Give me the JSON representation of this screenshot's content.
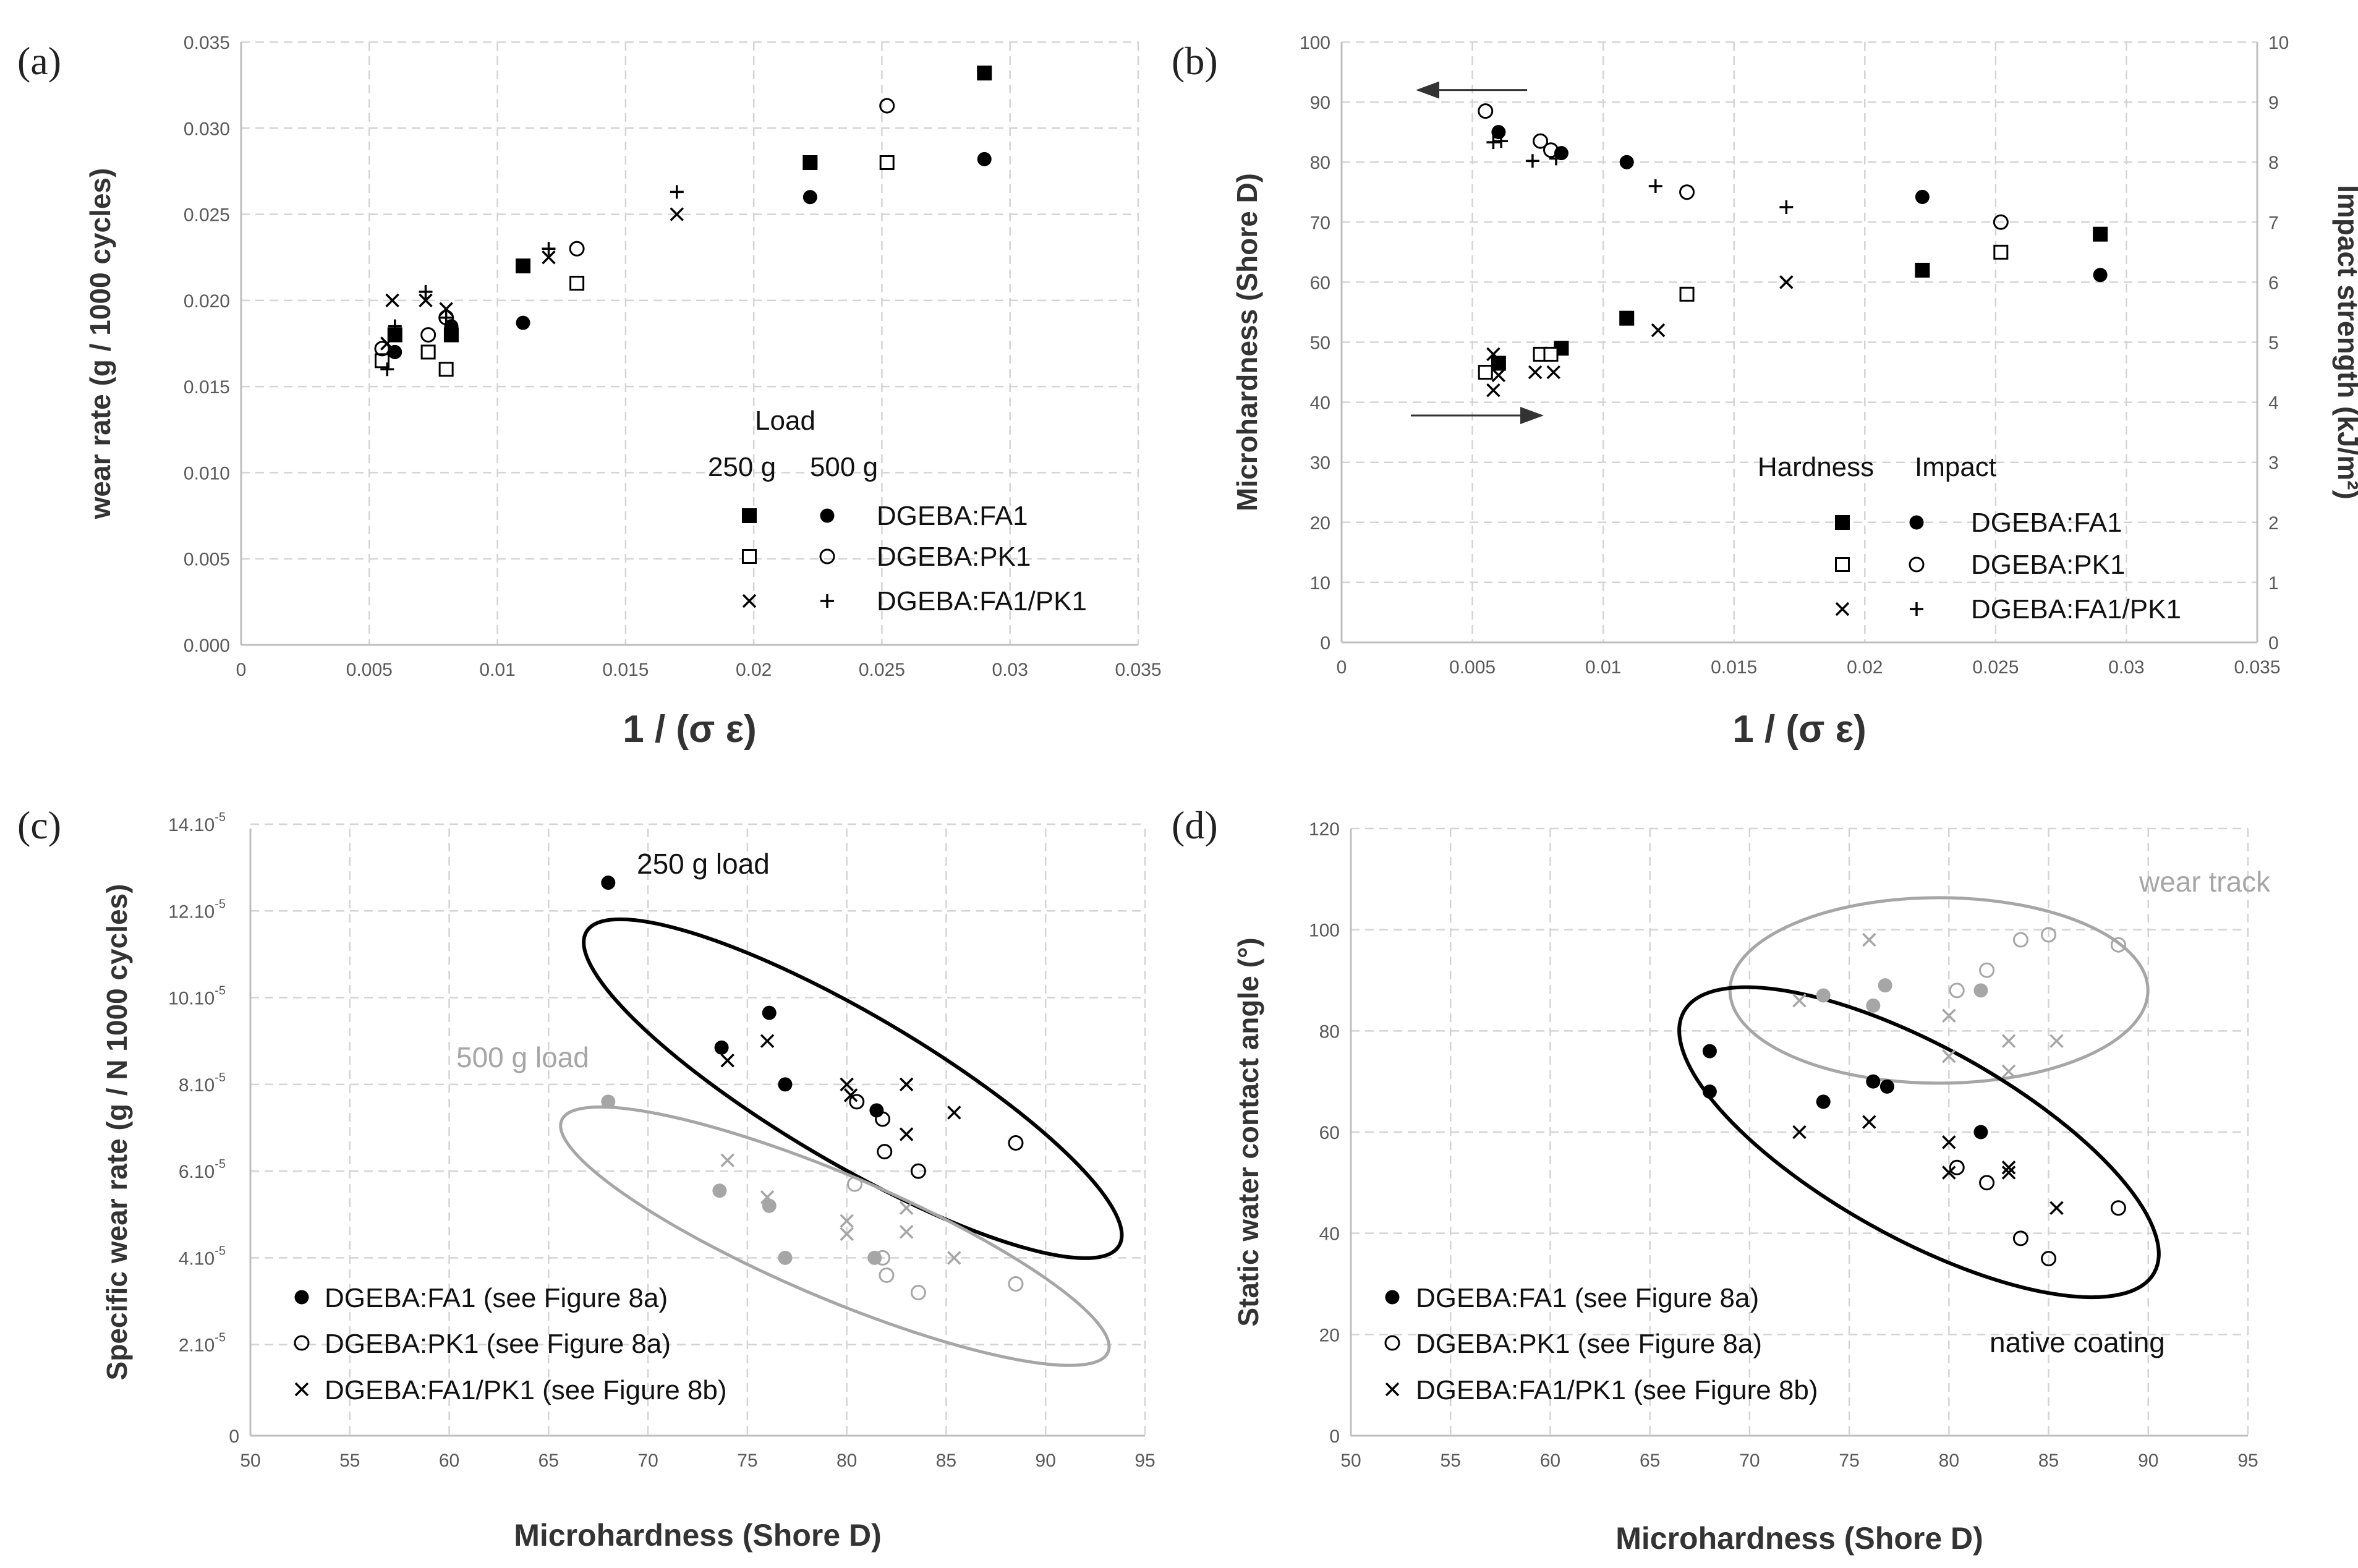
{
  "chart_data": [
    {
      "panel": "(a)",
      "type": "scatter",
      "title": "",
      "xlabel": "1 / (σ ε)",
      "ylabel": "wear rate (g / 1000 cycles)",
      "xlim": [
        0,
        0.035
      ],
      "ylim": [
        0,
        0.035
      ],
      "xticks": [
        0,
        0.005,
        0.01,
        0.015,
        0.02,
        0.025,
        0.03,
        0.035
      ],
      "xtick_labels": [
        "0",
        "0.005",
        "0.01",
        "0.015",
        "0.02",
        "0.025",
        "0.03",
        "0.035"
      ],
      "yticks": [
        0,
        0.005,
        0.01,
        0.015,
        0.02,
        0.025,
        0.03,
        0.035
      ],
      "ytick_labels": [
        "0.000",
        "0.005",
        "0.010",
        "0.015",
        "0.020",
        "0.025",
        "0.030",
        "0.035"
      ],
      "grid": true,
      "legend": {
        "title": "Load",
        "column_headers": [
          "250 g",
          "500 g"
        ],
        "entries": [
          "DGEBA:FA1",
          "DGEBA:PK1",
          "DGEBA:FA1/PK1"
        ],
        "placement": "lower-right"
      },
      "series": [
        {
          "name": "DGEBA:FA1 250 g",
          "marker": "square-filled",
          "points": [
            [
              0.006,
              0.018
            ],
            [
              0.0082,
              0.018
            ],
            [
              0.011,
              0.022
            ],
            [
              0.0222,
              0.028
            ],
            [
              0.029,
              0.0332
            ]
          ]
        },
        {
          "name": "DGEBA:FA1 500 g",
          "marker": "circle-filled",
          "points": [
            [
              0.006,
              0.017
            ],
            [
              0.0082,
              0.0185
            ],
            [
              0.011,
              0.0187
            ],
            [
              0.0222,
              0.026
            ],
            [
              0.029,
              0.0282
            ]
          ]
        },
        {
          "name": "DGEBA:PK1 250 g",
          "marker": "square-open",
          "points": [
            [
              0.0055,
              0.0165
            ],
            [
              0.0073,
              0.017
            ],
            [
              0.008,
              0.016
            ],
            [
              0.0131,
              0.021
            ],
            [
              0.0252,
              0.028
            ]
          ]
        },
        {
          "name": "DGEBA:PK1 500 g",
          "marker": "circle-open",
          "points": [
            [
              0.0055,
              0.0172
            ],
            [
              0.0073,
              0.018
            ],
            [
              0.008,
              0.019
            ],
            [
              0.0131,
              0.023
            ],
            [
              0.0252,
              0.0313
            ]
          ]
        },
        {
          "name": "DGEBA:FA1/PK1 250 g",
          "marker": "x",
          "points": [
            [
              0.0057,
              0.0175
            ],
            [
              0.0059,
              0.02
            ],
            [
              0.0072,
              0.02
            ],
            [
              0.008,
              0.0195
            ],
            [
              0.012,
              0.0225
            ],
            [
              0.017,
              0.025
            ]
          ]
        },
        {
          "name": "DGEBA:FA1/PK1 500 g",
          "marker": "plus",
          "points": [
            [
              0.0057,
              0.016
            ],
            [
              0.006,
              0.0185
            ],
            [
              0.0072,
              0.0205
            ],
            [
              0.008,
              0.019
            ],
            [
              0.012,
              0.023
            ],
            [
              0.017,
              0.0263
            ]
          ]
        }
      ]
    },
    {
      "panel": "(b)",
      "type": "scatter",
      "title": "",
      "xlabel": "1 / (σ ε)",
      "ylabel": "Microhardness (Shore D)",
      "y2label": "Impact strength (kJ/m²)",
      "xlim": [
        0,
        0.035
      ],
      "ylim": [
        0,
        100
      ],
      "y2lim": [
        0,
        10
      ],
      "xticks": [
        0,
        0.005,
        0.01,
        0.015,
        0.02,
        0.025,
        0.03,
        0.035
      ],
      "xtick_labels": [
        "0",
        "0.005",
        "0.01",
        "0.015",
        "0.02",
        "0.025",
        "0.03",
        "0.035"
      ],
      "yticks": [
        0,
        10,
        20,
        30,
        40,
        50,
        60,
        70,
        80,
        90,
        100
      ],
      "ytick_labels": [
        "0",
        "10",
        "20",
        "30",
        "40",
        "50",
        "60",
        "70",
        "80",
        "90",
        "100"
      ],
      "y2ticks": [
        0,
        1,
        2,
        3,
        4,
        5,
        6,
        7,
        8,
        9,
        10
      ],
      "y2tick_labels": [
        "0",
        "1",
        "2",
        "3",
        "4",
        "5",
        "6",
        "7",
        "8",
        "9",
        "10"
      ],
      "grid": true,
      "annotations": [
        "arrow pointing left at hardness points (≈ y 92)",
        "arrow pointing right at impact points (≈ y 38)"
      ],
      "legend": {
        "column_headers": [
          "Hardness",
          "Impact"
        ],
        "entries": [
          "DGEBA:FA1",
          "DGEBA:PK1",
          "DGEBA:FA1/PK1"
        ],
        "placement": "lower-right"
      },
      "series": [
        {
          "name": "DGEBA:FA1 hardness",
          "axis": "left",
          "marker": "circle-filled",
          "points": [
            [
              0.006,
              85.0
            ],
            [
              0.0084,
              81.5
            ],
            [
              0.0109,
              80.0
            ],
            [
              0.0222,
              74.2
            ],
            [
              0.029,
              61.2
            ]
          ]
        },
        {
          "name": "DGEBA:FA1 impact",
          "axis": "right",
          "marker": "square-filled",
          "points": [
            [
              0.006,
              4.65
            ],
            [
              0.0084,
              4.9
            ],
            [
              0.0109,
              5.4
            ],
            [
              0.0222,
              6.2
            ],
            [
              0.029,
              6.8
            ]
          ]
        },
        {
          "name": "DGEBA:PK1 hardness",
          "axis": "left",
          "marker": "circle-open",
          "points": [
            [
              0.0055,
              88.5
            ],
            [
              0.0076,
              83.5
            ],
            [
              0.008,
              82.0
            ],
            [
              0.0132,
              75.0
            ],
            [
              0.0252,
              70.0
            ]
          ]
        },
        {
          "name": "DGEBA:PK1 impact",
          "axis": "right",
          "marker": "square-open",
          "points": [
            [
              0.0055,
              4.5
            ],
            [
              0.0076,
              4.8
            ],
            [
              0.008,
              4.8
            ],
            [
              0.0132,
              5.8
            ],
            [
              0.0252,
              6.5
            ]
          ]
        },
        {
          "name": "DGEBA:FA1/PK1 hardness",
          "axis": "left",
          "marker": "plus",
          "points": [
            [
              0.0058,
              83.3
            ],
            [
              0.0061,
              83.5
            ],
            [
              0.0073,
              80.2
            ],
            [
              0.0082,
              80.6
            ],
            [
              0.012,
              76.0
            ],
            [
              0.017,
              72.5
            ]
          ]
        },
        {
          "name": "DGEBA:FA1/PK1 impact",
          "axis": "right",
          "marker": "x",
          "points": [
            [
              0.0058,
              4.2
            ],
            [
              0.006,
              4.45
            ],
            [
              0.0058,
              4.8
            ],
            [
              0.0074,
              4.5
            ],
            [
              0.0081,
              4.5
            ],
            [
              0.0121,
              5.2
            ],
            [
              0.017,
              6.0
            ]
          ]
        }
      ]
    },
    {
      "panel": "(c)",
      "type": "scatter",
      "title": "",
      "xlabel": "Microhardness (Shore D)",
      "ylabel": "Specific wear rate (g / N 1000 cycles)",
      "xlim": [
        50,
        95
      ],
      "ylim": [
        0,
        14
      ],
      "xticks": [
        50,
        55,
        60,
        65,
        70,
        75,
        80,
        85,
        90,
        95
      ],
      "xtick_labels": [
        "50",
        "55",
        "60",
        "65",
        "70",
        "75",
        "80",
        "85",
        "90",
        "95"
      ],
      "yticks": [
        0,
        2.1,
        4.1,
        6.1,
        8.1,
        10.1,
        12.1,
        14.1
      ],
      "ytick_labels": [
        "0",
        "2.10",
        "4.10",
        "6.10",
        "8.10",
        "10.10",
        "12.10",
        "14.10"
      ],
      "ytick_exponent": "-5",
      "grid": true,
      "annotations": [
        "250 g load",
        "500 g load"
      ],
      "legend": {
        "entries": [
          "DGEBA:FA1 (see Figure 8a)",
          "DGEBA:PK1 (see Figure 8a)",
          "DGEBA:FA1/PK1 (see Figure 8b)"
        ],
        "placement": "lower-left"
      },
      "series": [
        {
          "name": "DGEBA:FA1 250 g",
          "marker": "circle-filled",
          "color": "#000000",
          "points": [
            [
              68.0,
              12.75
            ],
            [
              73.7,
              8.95
            ],
            [
              76.1,
              9.75
            ],
            [
              76.9,
              8.1
            ],
            [
              81.5,
              7.5
            ]
          ]
        },
        {
          "name": "DGEBA:PK1 250 g",
          "marker": "circle-open",
          "color": "#000000",
          "points": [
            [
              80.5,
              7.7
            ],
            [
              81.8,
              7.3
            ],
            [
              81.9,
              6.55
            ],
            [
              83.6,
              6.1
            ],
            [
              88.5,
              6.75
            ]
          ]
        },
        {
          "name": "DGEBA:FA1/PK1 250 g",
          "marker": "x",
          "color": "#000000",
          "points": [
            [
              74.0,
              8.65
            ],
            [
              76.0,
              9.1
            ],
            [
              80.0,
              8.1
            ],
            [
              80.2,
              7.85
            ],
            [
              83.0,
              8.1
            ],
            [
              83.0,
              6.95
            ],
            [
              85.4,
              7.45
            ]
          ]
        },
        {
          "name": "DGEBA:FA1 500 g",
          "marker": "circle-filled",
          "color": "#a6a6a6",
          "points": [
            [
              68.0,
              7.7
            ],
            [
              73.6,
              5.65
            ],
            [
              76.1,
              5.3
            ],
            [
              76.9,
              4.1
            ],
            [
              81.4,
              4.1
            ]
          ]
        },
        {
          "name": "DGEBA:PK1 500 g",
          "marker": "circle-open",
          "color": "#a6a6a6",
          "points": [
            [
              80.4,
              5.8
            ],
            [
              81.8,
              4.1
            ],
            [
              82.0,
              3.7
            ],
            [
              83.6,
              3.3
            ],
            [
              88.5,
              3.5
            ]
          ]
        },
        {
          "name": "DGEBA:FA1/PK1 500 g",
          "marker": "x",
          "color": "#a6a6a6",
          "points": [
            [
              74.0,
              6.35
            ],
            [
              76.0,
              5.5
            ],
            [
              80.0,
              4.95
            ],
            [
              80.0,
              4.65
            ],
            [
              83.0,
              5.25
            ],
            [
              83.0,
              4.7
            ],
            [
              85.4,
              4.1
            ]
          ]
        }
      ]
    },
    {
      "panel": "(d)",
      "type": "scatter",
      "title": "",
      "xlabel": "Microhardness (Shore D)",
      "ylabel": "Static water contact angle (°)",
      "xlim": [
        50,
        95
      ],
      "ylim": [
        0,
        120
      ],
      "xticks": [
        50,
        55,
        60,
        65,
        70,
        75,
        80,
        85,
        90,
        95
      ],
      "xtick_labels": [
        "50",
        "55",
        "60",
        "65",
        "70",
        "75",
        "80",
        "85",
        "90",
        "95"
      ],
      "yticks": [
        0,
        20,
        40,
        60,
        80,
        100,
        120
      ],
      "ytick_labels": [
        "0",
        "20",
        "40",
        "60",
        "80",
        "100",
        "120"
      ],
      "grid": true,
      "annotations": [
        "wear track",
        "native coating"
      ],
      "legend": {
        "entries": [
          "DGEBA:FA1 (see Figure 8a)",
          "DGEBA:PK1 (see Figure 8a)",
          "DGEBA:FA1/PK1 (see Figure 8b)"
        ],
        "placement": "lower-left"
      },
      "series": [
        {
          "name": "DGEBA:FA1 native coating",
          "marker": "circle-filled",
          "color": "#000000",
          "points": [
            [
              68.0,
              76.0
            ],
            [
              68.0,
              68.0
            ],
            [
              73.7,
              66.0
            ],
            [
              76.2,
              70.0
            ],
            [
              76.9,
              69.0
            ],
            [
              81.6,
              60.0
            ]
          ]
        },
        {
          "name": "DGEBA:PK1 native coating",
          "marker": "circle-open",
          "color": "#000000",
          "points": [
            [
              80.4,
              53.0
            ],
            [
              81.9,
              50.0
            ],
            [
              83.6,
              39.0
            ],
            [
              85.0,
              35.0
            ],
            [
              88.5,
              45.0
            ]
          ]
        },
        {
          "name": "DGEBA:FA1/PK1 native coating",
          "marker": "x",
          "color": "#000000",
          "points": [
            [
              72.5,
              60.0
            ],
            [
              76.0,
              62.0
            ],
            [
              80.0,
              58.0
            ],
            [
              80.0,
              52.0
            ],
            [
              83.0,
              53.0
            ],
            [
              83.0,
              52.0
            ],
            [
              85.4,
              45.0
            ]
          ]
        },
        {
          "name": "DGEBA:FA1 wear track",
          "marker": "circle-filled",
          "color": "#a6a6a6",
          "points": [
            [
              73.7,
              87.0
            ],
            [
              76.2,
              85.0
            ],
            [
              76.8,
              89.0
            ],
            [
              81.6,
              88.0
            ]
          ]
        },
        {
          "name": "DGEBA:PK1 wear track",
          "marker": "circle-open",
          "color": "#a6a6a6",
          "points": [
            [
              80.4,
              88.0
            ],
            [
              81.9,
              92.0
            ],
            [
              83.6,
              98.0
            ],
            [
              85.0,
              99.0
            ],
            [
              88.5,
              97.0
            ]
          ]
        },
        {
          "name": "DGEBA:FA1/PK1 wear track",
          "marker": "x",
          "color": "#a6a6a6",
          "points": [
            [
              72.5,
              86.0
            ],
            [
              76.0,
              98.0
            ],
            [
              80.0,
              83.0
            ],
            [
              80.0,
              75.0
            ],
            [
              83.0,
              78.0
            ],
            [
              83.0,
              72.0
            ],
            [
              85.4,
              78.0
            ]
          ]
        }
      ]
    }
  ],
  "panel_labels": [
    "(a)",
    "(b)",
    "(c)",
    "(d)"
  ],
  "colors": {
    "black": "#000000",
    "gray": "#a6a6a6",
    "grid": "#d4d4d4",
    "axis": "#bfbfbf",
    "tick_text": "#595959"
  }
}
